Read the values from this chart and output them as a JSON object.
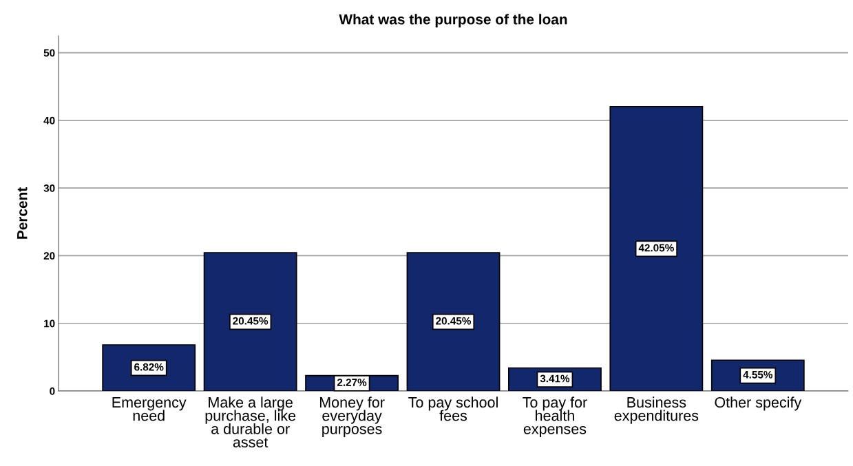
{
  "chart_data": {
    "type": "bar",
    "title": "What was the purpose of the loan",
    "ylabel": "Percent",
    "categories": [
      "Emergency need",
      "Make a large purchase, like a durable or asset",
      "Money for everyday purposes",
      "To pay school fees",
      "To pay for health expenses",
      "Business expenditures",
      "Other specify"
    ],
    "values": [
      6.82,
      20.45,
      2.27,
      20.45,
      3.41,
      42.05,
      4.55
    ],
    "value_labels": [
      "6.82%",
      "20.45%",
      "2.27%",
      "20.45%",
      "3.41%",
      "42.05%",
      "4.55%"
    ],
    "color": "#13286b",
    "ylim": [
      0,
      52.5
    ],
    "yticks": [
      0,
      10,
      20,
      30,
      40,
      50
    ],
    "grid": "y",
    "legend": false
  }
}
